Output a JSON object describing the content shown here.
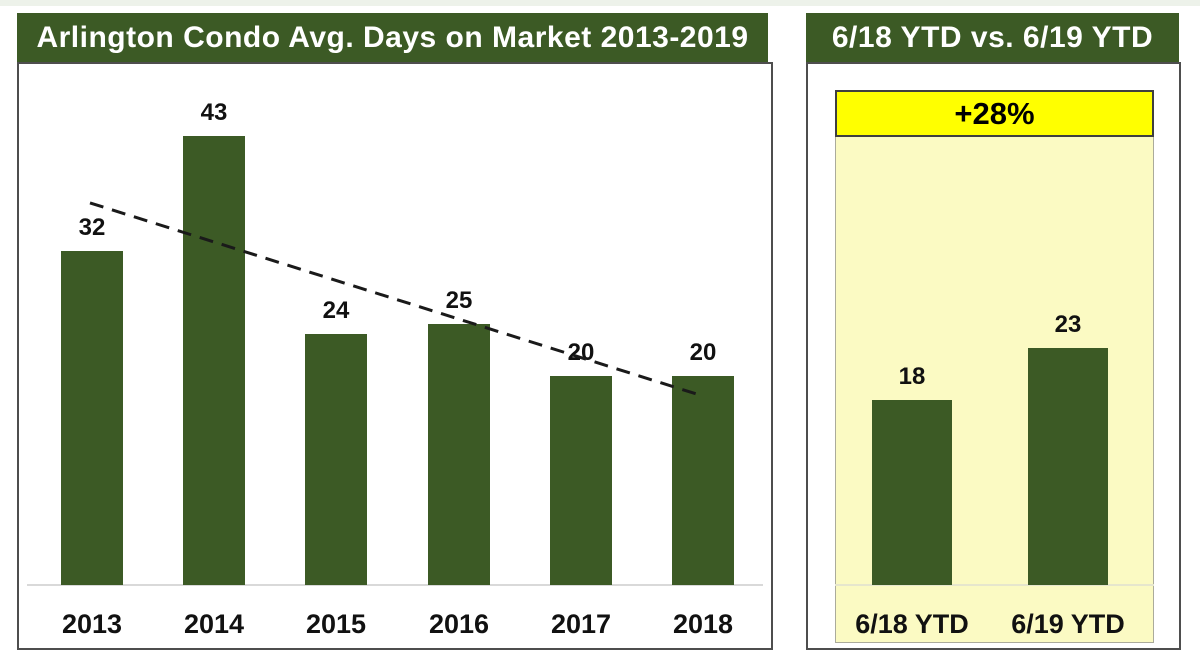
{
  "page": {
    "background": "#ffffff",
    "accent_green": "#3c5a25",
    "header_text_color": "#ffffff"
  },
  "chart_data": [
    {
      "type": "bar",
      "title": "Arlington Condo Avg. Days on Market 2013-2019",
      "categories": [
        "2013",
        "2014",
        "2015",
        "2016",
        "2017",
        "2018"
      ],
      "values": [
        32,
        43,
        24,
        25,
        20,
        20
      ],
      "ylim": [
        0,
        50
      ],
      "grid": false,
      "legend": false,
      "data_labels_shown": true,
      "bar_color": "#3c5a25",
      "plot_background": "#ffffff",
      "axis_line_color": "#d9d9d9",
      "trendline": {
        "type": "linear",
        "style": "dashed",
        "color": "#1a1a1a",
        "start_value": 36.6,
        "end_value": 18.1
      }
    },
    {
      "type": "bar",
      "title": "6/18 YTD vs. 6/19 YTD",
      "categories": [
        "6/18 YTD",
        "6/19 YTD"
      ],
      "values": [
        18,
        23
      ],
      "ylim": [
        0,
        44
      ],
      "grid": false,
      "legend": false,
      "data_labels_shown": true,
      "bar_color": "#3c5a25",
      "plot_background": "#fbfac3",
      "axis_line_color": "#e6e6cd",
      "annotation": {
        "text": "+28%",
        "background": "#ffff00",
        "text_color": "#000000"
      }
    }
  ]
}
